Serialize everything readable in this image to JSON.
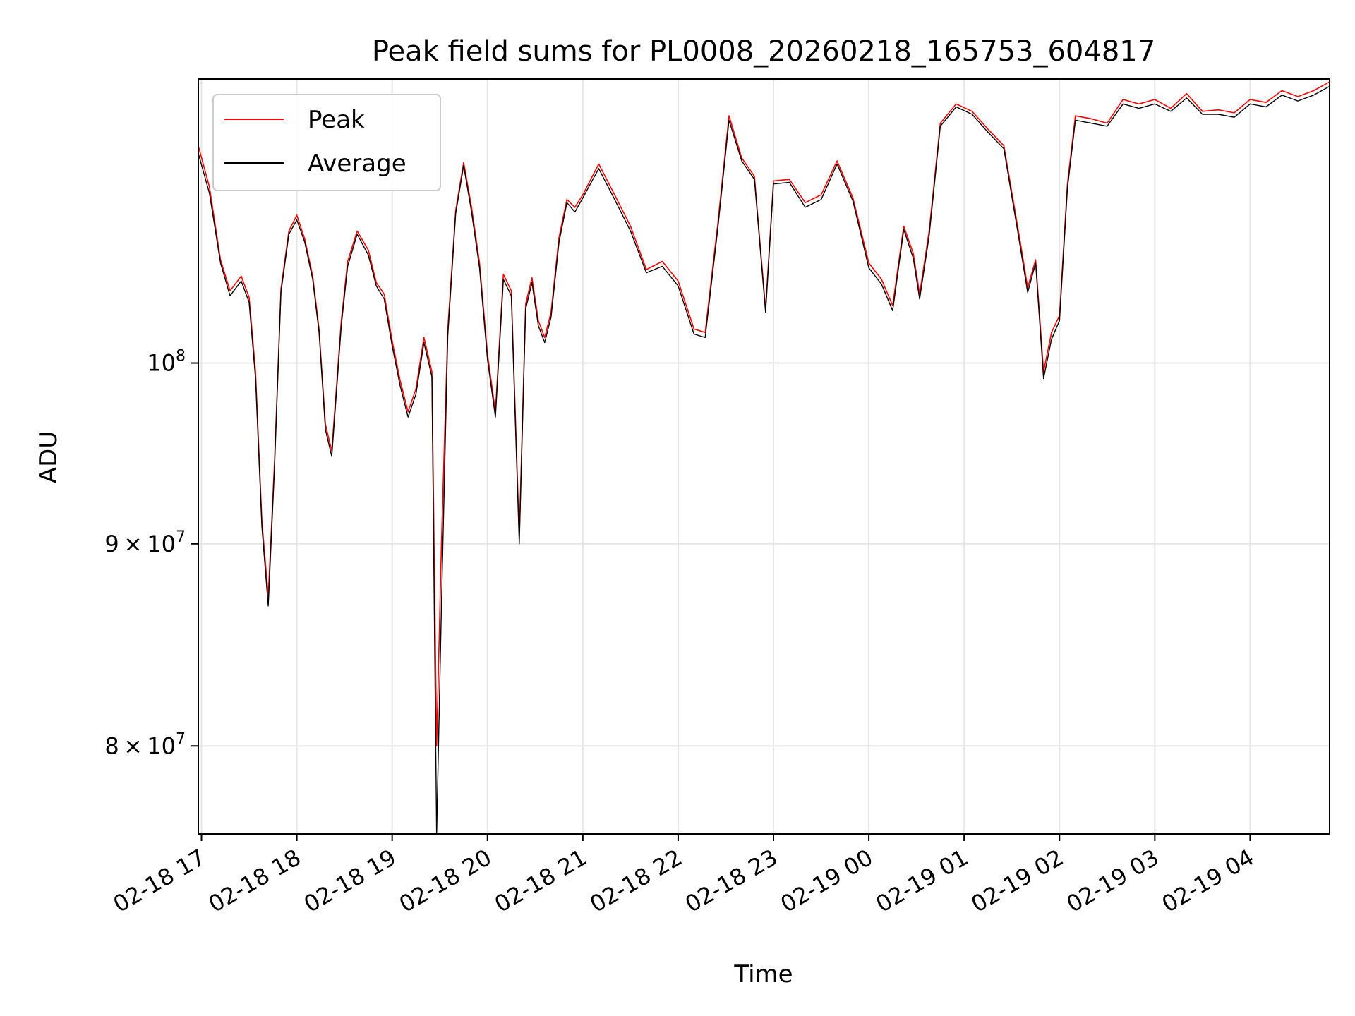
{
  "chart_data": {
    "type": "line",
    "title": "Peak field sums for PL0008_20260218_165753_604817",
    "xlabel": "Time",
    "ylabel": "ADU",
    "y_scale": "log",
    "xlim": [
      "2026-02-18 16:58",
      "2026-02-19 04:50"
    ],
    "ylim": [
      76000000,
      118000000
    ],
    "grid": true,
    "legend": "top-left",
    "x_ticks": [
      "02-18 17",
      "02-18 18",
      "02-18 19",
      "02-18 20",
      "02-18 21",
      "02-18 22",
      "02-18 23",
      "02-19 00",
      "02-19 01",
      "02-19 02",
      "02-19 03",
      "02-19 04"
    ],
    "y_ticks": [
      {
        "value": 80000000,
        "mant": "8",
        "exp": "7"
      },
      {
        "value": 90000000,
        "mant": "9",
        "exp": "7"
      },
      {
        "value": 100000000,
        "base": "10",
        "exp": "8"
      }
    ],
    "series": [
      {
        "name": "Peak",
        "color": "#ff0000"
      },
      {
        "name": "Average",
        "color": "#000000"
      }
    ],
    "x": [
      "2026-02-18 16:58",
      "2026-02-18 17:05",
      "2026-02-18 17:12",
      "2026-02-18 17:18",
      "2026-02-18 17:25",
      "2026-02-18 17:30",
      "2026-02-18 17:34",
      "2026-02-18 17:38",
      "2026-02-18 17:42",
      "2026-02-18 17:46",
      "2026-02-18 17:50",
      "2026-02-18 17:55",
      "2026-02-18 18:00",
      "2026-02-18 18:05",
      "2026-02-18 18:10",
      "2026-02-18 18:14",
      "2026-02-18 18:18",
      "2026-02-18 18:22",
      "2026-02-18 18:28",
      "2026-02-18 18:32",
      "2026-02-18 18:38",
      "2026-02-18 18:45",
      "2026-02-18 18:50",
      "2026-02-18 18:55",
      "2026-02-18 19:00",
      "2026-02-18 19:05",
      "2026-02-18 19:10",
      "2026-02-18 19:15",
      "2026-02-18 19:20",
      "2026-02-18 19:25",
      "2026-02-18 19:28",
      "2026-02-18 19:31",
      "2026-02-18 19:35",
      "2026-02-18 19:40",
      "2026-02-18 19:45",
      "2026-02-18 19:50",
      "2026-02-18 19:55",
      "2026-02-18 20:00",
      "2026-02-18 20:05",
      "2026-02-18 20:10",
      "2026-02-18 20:15",
      "2026-02-18 20:20",
      "2026-02-18 20:24",
      "2026-02-18 20:28",
      "2026-02-18 20:32",
      "2026-02-18 20:36",
      "2026-02-18 20:40",
      "2026-02-18 20:45",
      "2026-02-18 20:50",
      "2026-02-18 20:55",
      "2026-02-18 21:00",
      "2026-02-18 21:10",
      "2026-02-18 21:20",
      "2026-02-18 21:30",
      "2026-02-18 21:40",
      "2026-02-18 21:50",
      "2026-02-18 22:00",
      "2026-02-18 22:10",
      "2026-02-18 22:17",
      "2026-02-18 22:25",
      "2026-02-18 22:32",
      "2026-02-18 22:40",
      "2026-02-18 22:48",
      "2026-02-18 22:55",
      "2026-02-18 23:00",
      "2026-02-18 23:10",
      "2026-02-18 23:20",
      "2026-02-18 23:30",
      "2026-02-18 23:40",
      "2026-02-18 23:50",
      "2026-02-19 00:00",
      "2026-02-19 00:08",
      "2026-02-19 00:15",
      "2026-02-19 00:22",
      "2026-02-19 00:28",
      "2026-02-19 00:32",
      "2026-02-19 00:38",
      "2026-02-19 00:45",
      "2026-02-19 00:55",
      "2026-02-19 01:05",
      "2026-02-19 01:15",
      "2026-02-19 01:25",
      "2026-02-19 01:35",
      "2026-02-19 01:40",
      "2026-02-19 01:45",
      "2026-02-19 01:50",
      "2026-02-19 01:55",
      "2026-02-19 02:00",
      "2026-02-19 02:05",
      "2026-02-19 02:10",
      "2026-02-19 02:20",
      "2026-02-19 02:30",
      "2026-02-19 02:40",
      "2026-02-19 02:50",
      "2026-02-19 03:00",
      "2026-02-19 03:10",
      "2026-02-19 03:20",
      "2026-02-19 03:30",
      "2026-02-19 03:40",
      "2026-02-19 03:50",
      "2026-02-19 04:00",
      "2026-02-19 04:10",
      "2026-02-19 04:20",
      "2026-02-19 04:30",
      "2026-02-19 04:40",
      "2026-02-19 04:50"
    ],
    "peak": [
      113.5,
      110.8,
      106.2,
      104.3,
      105.2,
      103.9,
      99.5,
      91.2,
      87.3,
      94.5,
      104.4,
      108.0,
      109.0,
      107.5,
      105.2,
      102.0,
      96.5,
      95.0,
      102.5,
      106.1,
      108.0,
      106.8,
      104.8,
      104.1,
      101.3,
      99.0,
      97.2,
      98.5,
      101.5,
      99.5,
      80.0,
      90.0,
      102.0,
      109.3,
      112.4,
      109.5,
      106.0,
      100.5,
      97.2,
      105.3,
      104.3,
      90.4,
      103.5,
      105.1,
      102.5,
      101.5,
      103.0,
      107.6,
      110.0,
      109.5,
      110.3,
      112.3,
      110.3,
      108.3,
      105.6,
      106.1,
      104.9,
      102.0,
      101.8,
      108.5,
      115.5,
      112.7,
      111.5,
      103.2,
      111.2,
      111.3,
      109.8,
      110.3,
      112.5,
      110.1,
      106.0,
      105.0,
      103.4,
      108.3,
      106.6,
      104.1,
      108.0,
      115.0,
      116.3,
      115.8,
      114.6,
      113.5,
      107.5,
      104.5,
      106.2,
      99.5,
      101.8,
      102.8,
      111.0,
      115.5,
      115.3,
      115.0,
      116.6,
      116.3,
      116.6,
      116.0,
      117.0,
      115.8,
      115.9,
      115.7,
      116.6,
      116.4,
      117.2,
      116.8,
      117.2,
      117.8
    ],
    "average": [
      113.0,
      110.4,
      106.0,
      104.0,
      104.9,
      103.6,
      99.1,
      90.9,
      86.8,
      94.2,
      104.2,
      107.8,
      108.7,
      107.3,
      105.0,
      101.8,
      96.2,
      94.7,
      102.2,
      105.8,
      107.8,
      106.5,
      104.6,
      103.8,
      101.0,
      98.7,
      96.9,
      98.2,
      101.2,
      99.2,
      76.0,
      86.8,
      101.6,
      109.1,
      112.2,
      109.2,
      105.7,
      100.2,
      96.9,
      105.0,
      104.0,
      90.0,
      103.2,
      104.8,
      102.2,
      101.2,
      102.7,
      107.3,
      109.8,
      109.2,
      110.1,
      112.0,
      110.0,
      108.0,
      105.4,
      105.8,
      104.6,
      101.7,
      101.5,
      108.2,
      115.2,
      112.5,
      111.3,
      103.0,
      111.0,
      111.1,
      109.5,
      110.0,
      112.3,
      109.9,
      105.7,
      104.7,
      103.1,
      108.1,
      106.3,
      103.8,
      107.7,
      114.8,
      116.1,
      115.6,
      114.4,
      113.3,
      107.2,
      104.2,
      106.0,
      99.1,
      101.4,
      102.5,
      110.7,
      115.2,
      115.0,
      114.8,
      116.3,
      116.0,
      116.3,
      115.8,
      116.7,
      115.6,
      115.6,
      115.4,
      116.3,
      116.1,
      116.9,
      116.5,
      116.9,
      117.5
    ],
    "value_multiplier": 1000000
  }
}
